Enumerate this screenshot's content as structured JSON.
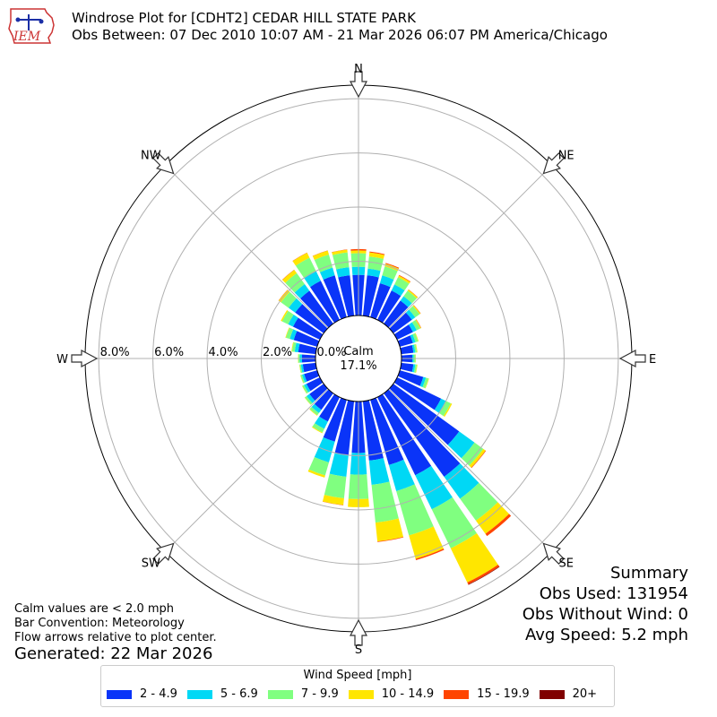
{
  "title_line1": "Windrose Plot for [CDHT2] CEDAR HILL STATE PARK",
  "title_line2": "Obs Between: 07 Dec 2010 10:07 AM - 21 Mar 2026 06:07 PM America/Chicago",
  "logo_text": "IEM",
  "notes": {
    "line1": "Calm values are < 2.0 mph",
    "line2": "Bar Convention: Meteorology",
    "line3": "Flow arrows relative to plot center."
  },
  "generated": "Generated: 22 Mar 2026",
  "summary": {
    "title": "Summary",
    "obs_used": "Obs Used: 131954",
    "obs_without_wind": "Obs Without Wind: 0",
    "avg_speed": "Avg Speed: 5.2 mph"
  },
  "legend": {
    "title": "Wind Speed [mph]",
    "items": [
      {
        "label": "2 - 4.9",
        "color": "#0a34f8"
      },
      {
        "label": "5 - 6.9",
        "color": "#00d8f5"
      },
      {
        "label": "7 - 9.9",
        "color": "#80ff80"
      },
      {
        "label": "10 - 14.9",
        "color": "#ffe600"
      },
      {
        "label": "15 - 19.9",
        "color": "#ff4500"
      },
      {
        "label": "20+",
        "color": "#800000"
      }
    ]
  },
  "chart_data": {
    "type": "windrose",
    "calm_label": "Calm",
    "calm_percent": "17.1%",
    "direction_labels": [
      "N",
      "NE",
      "E",
      "SE",
      "S",
      "SW",
      "W",
      "NW"
    ],
    "ring_labels": [
      "0.0%",
      "2.0%",
      "4.0%",
      "6.0%",
      "8.0%"
    ],
    "rings": [
      0,
      2,
      4,
      6,
      8
    ],
    "r_max": 8.5,
    "direction_bins_deg": [
      0,
      10,
      20,
      30,
      40,
      50,
      60,
      70,
      80,
      90,
      100,
      110,
      120,
      130,
      140,
      150,
      160,
      170,
      180,
      190,
      200,
      210,
      220,
      230,
      240,
      250,
      260,
      270,
      280,
      290,
      300,
      310,
      320,
      330,
      340,
      350
    ],
    "bands": [
      "2 - 4.9",
      "5 - 6.9",
      "7 - 9.9",
      "10 - 14.9",
      "15 - 19.9",
      "20+"
    ],
    "colors": [
      "#0a34f8",
      "#00d8f5",
      "#80ff80",
      "#ffe600",
      "#ff4500",
      "#800000"
    ],
    "cumulative_percent": [
      [
        1.5,
        1.8,
        2.3,
        2.4,
        2.45,
        2.45
      ],
      [
        1.5,
        1.75,
        2.2,
        2.35,
        2.38,
        2.38
      ],
      [
        1.3,
        1.6,
        1.95,
        2.05,
        2.08,
        2.08
      ],
      [
        1.2,
        1.45,
        1.75,
        1.82,
        1.84,
        1.84
      ],
      [
        1.05,
        1.25,
        1.5,
        1.55,
        1.56,
        1.56
      ],
      [
        0.85,
        1.0,
        1.2,
        1.24,
        1.25,
        1.25
      ],
      [
        0.65,
        0.8,
        0.95,
        0.98,
        0.99,
        0.99
      ],
      [
        0.5,
        0.6,
        0.7,
        0.72,
        0.72,
        0.72
      ],
      [
        0.45,
        0.52,
        0.58,
        0.6,
        0.6,
        0.6
      ],
      [
        0.4,
        0.45,
        0.52,
        0.53,
        0.53,
        0.53
      ],
      [
        0.45,
        0.52,
        0.58,
        0.6,
        0.6,
        0.6
      ],
      [
        0.9,
        1.0,
        1.1,
        1.12,
        1.12,
        1.12
      ],
      [
        1.8,
        2.0,
        2.2,
        2.25,
        2.25,
        2.25
      ],
      [
        3.0,
        3.7,
        4.1,
        4.2,
        4.22,
        4.22
      ],
      [
        3.8,
        4.8,
        5.8,
        6.4,
        6.5,
        6.5
      ],
      [
        3.2,
        4.6,
        6.2,
        7.6,
        7.68,
        7.7
      ],
      [
        2.5,
        3.5,
        5.2,
        6.1,
        6.15,
        6.15
      ],
      [
        2.2,
        3.1,
        4.5,
        5.2,
        5.22,
        5.22
      ],
      [
        1.9,
        2.7,
        3.6,
        3.9,
        3.9,
        3.9
      ],
      [
        2.0,
        2.8,
        3.6,
        3.85,
        3.86,
        3.86
      ],
      [
        1.6,
        2.4,
        2.9,
        2.98,
        2.98,
        2.98
      ],
      [
        1.0,
        1.3,
        1.45,
        1.48,
        1.48,
        1.48
      ],
      [
        0.75,
        0.9,
        1.0,
        1.02,
        1.02,
        1.02
      ],
      [
        0.65,
        0.78,
        0.86,
        0.87,
        0.87,
        0.87
      ],
      [
        0.55,
        0.65,
        0.72,
        0.73,
        0.73,
        0.73
      ],
      [
        0.5,
        0.58,
        0.64,
        0.65,
        0.65,
        0.65
      ],
      [
        0.48,
        0.55,
        0.6,
        0.61,
        0.61,
        0.61
      ],
      [
        0.5,
        0.58,
        0.64,
        0.65,
        0.65,
        0.65
      ],
      [
        0.65,
        0.78,
        0.88,
        0.9,
        0.9,
        0.9
      ],
      [
        0.9,
        1.05,
        1.2,
        1.22,
        1.22,
        1.22
      ],
      [
        1.1,
        1.3,
        1.55,
        1.6,
        1.6,
        1.6
      ],
      [
        1.3,
        1.6,
        1.95,
        2.05,
        2.06,
        2.06
      ],
      [
        1.5,
        1.8,
        2.3,
        2.45,
        2.46,
        2.46
      ],
      [
        1.6,
        2.0,
        2.55,
        2.75,
        2.76,
        2.76
      ],
      [
        1.6,
        1.9,
        2.4,
        2.55,
        2.56,
        2.56
      ],
      [
        1.5,
        1.8,
        2.35,
        2.45,
        2.46,
        2.46
      ]
    ]
  }
}
